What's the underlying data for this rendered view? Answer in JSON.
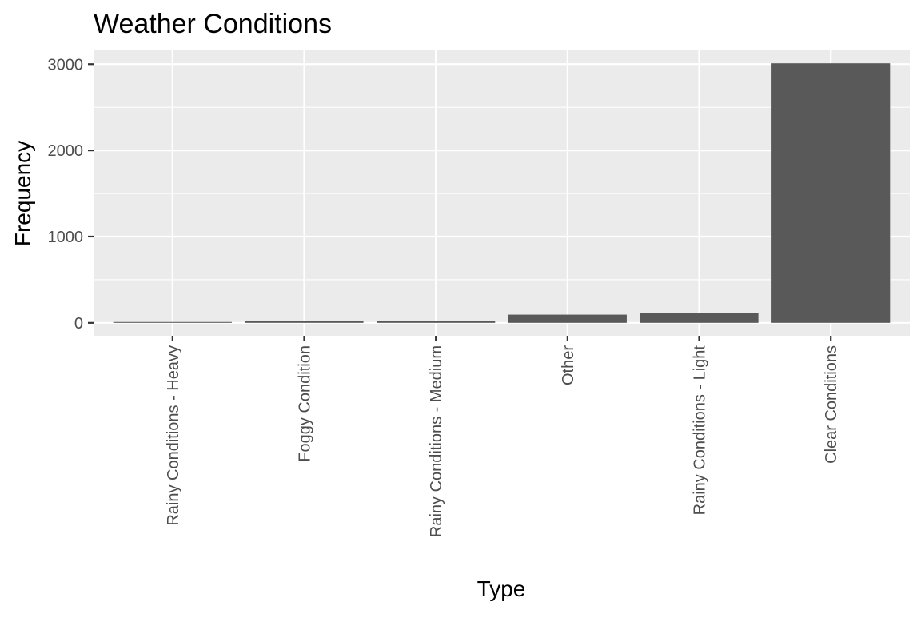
{
  "chart_data": {
    "type": "bar",
    "title": "Weather Conditions",
    "xlabel": "Type",
    "ylabel": "Frequency",
    "categories": [
      "Rainy Conditions - Heavy",
      "Foggy Condition",
      "Rainy Conditions - Medium",
      "Other",
      "Rainy Conditions - Light",
      "Clear Conditions"
    ],
    "values": [
      10,
      20,
      22,
      95,
      115,
      3010
    ],
    "ylim": [
      -150,
      3160
    ],
    "yticks": [
      0,
      1000,
      2000,
      3000
    ],
    "ytick_labels": [
      "0",
      "1000",
      "2000",
      "3000"
    ],
    "grid": true,
    "bar_color": "#595959",
    "panel_color": "#EBEBEB",
    "grid_color": "#FFFFFF"
  }
}
